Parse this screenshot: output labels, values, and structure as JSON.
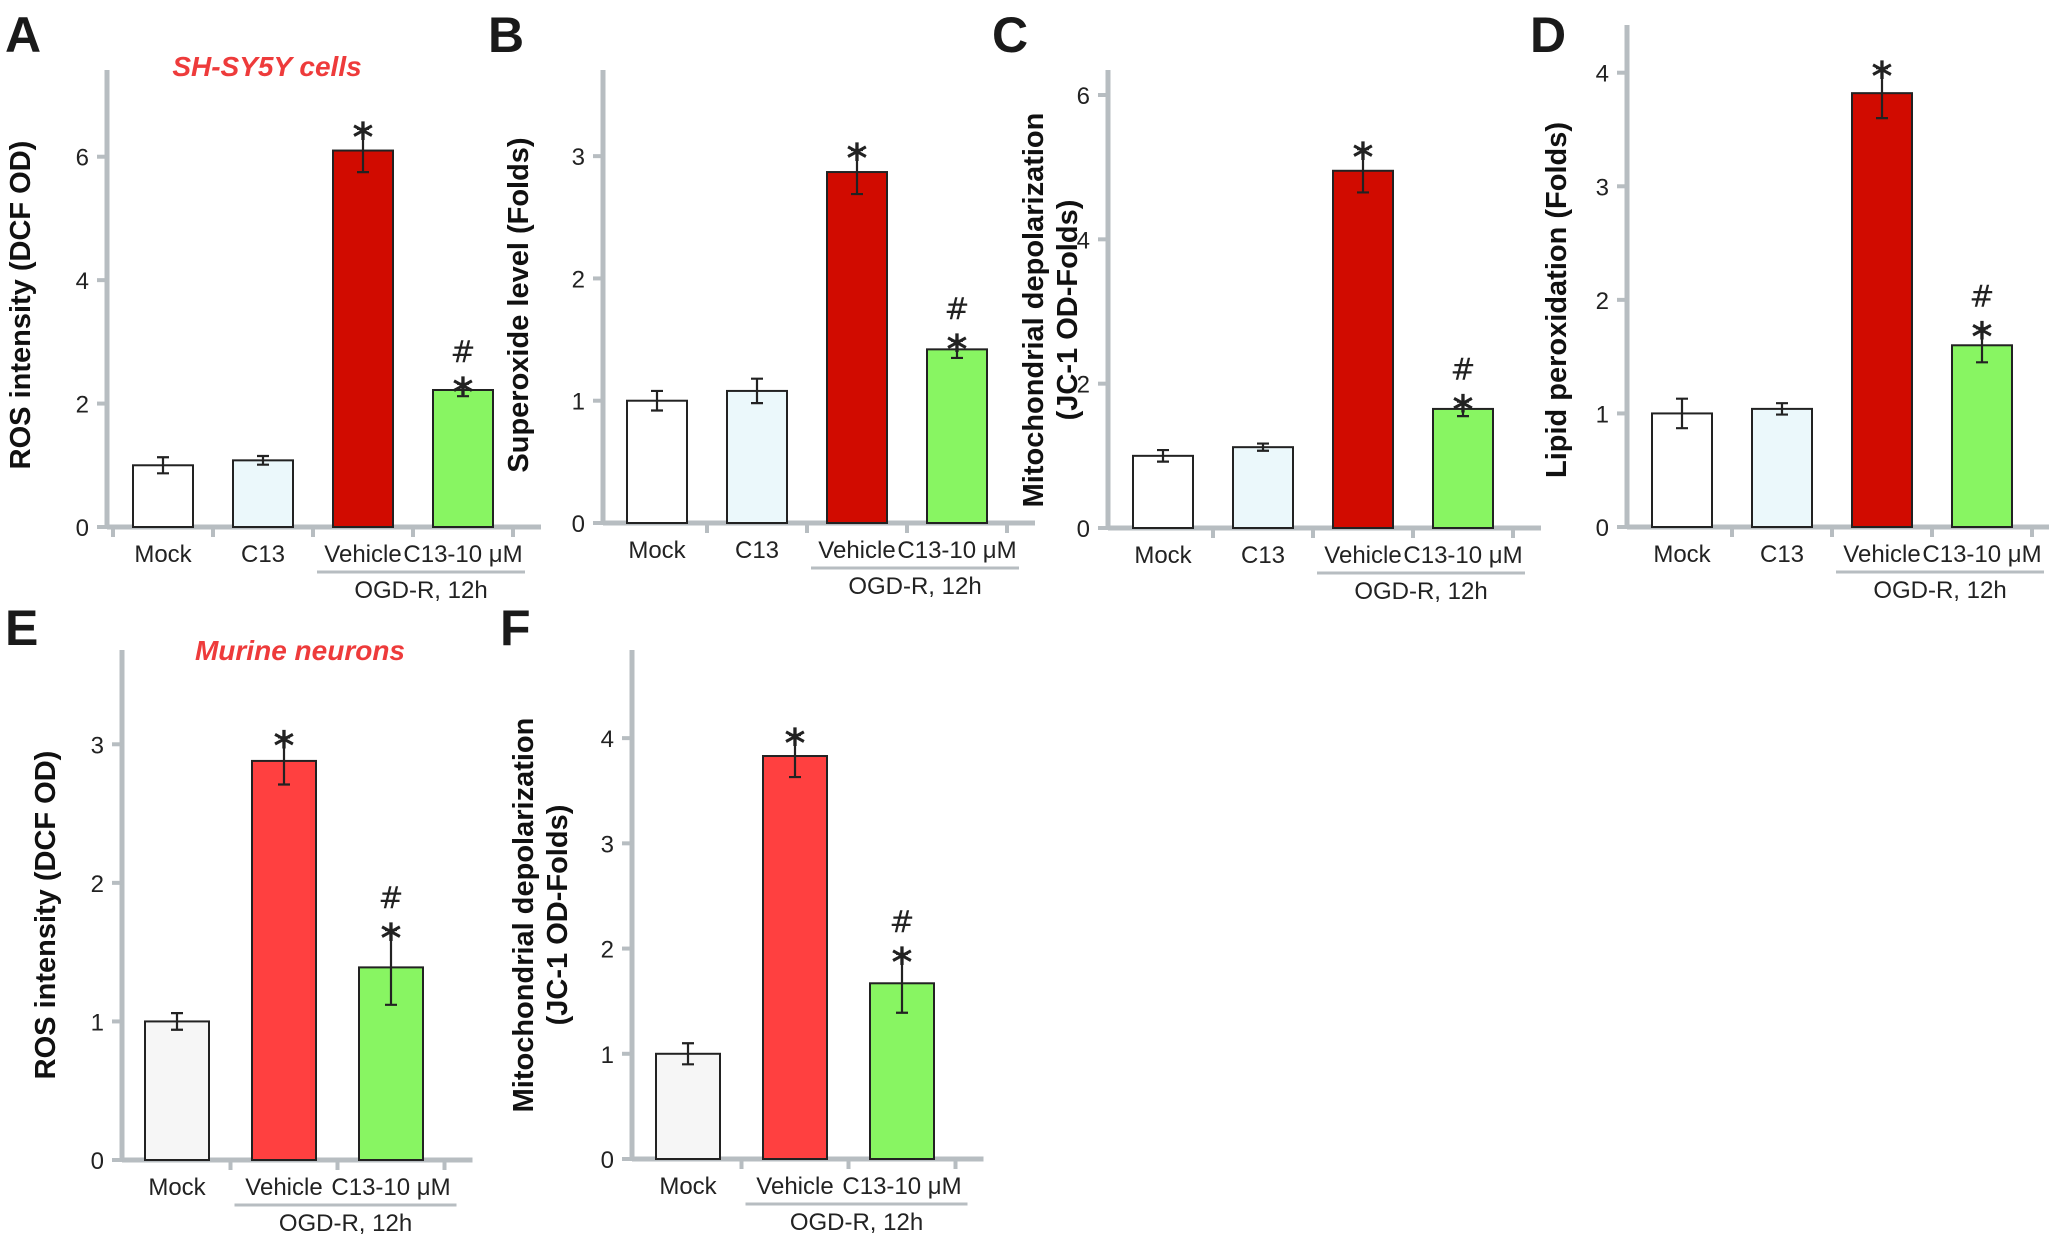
{
  "chart_data": [
    {
      "panel": "A",
      "type": "bar",
      "title": "SH-SY5Y cells",
      "ylabel": "ROS intensity (DCF OD)",
      "categories": [
        "Mock",
        "C13",
        "Vehicle",
        "C13-10 μM"
      ],
      "group_label": "OGD-R, 12h",
      "values": [
        1.0,
        1.08,
        6.1,
        2.22
      ],
      "errors": [
        0.13,
        0.07,
        0.35,
        0.1
      ],
      "colors": [
        "#ffffff",
        "#ebf8fb",
        "#d10b00",
        "#88f562"
      ],
      "markers": [
        "",
        "",
        "*",
        "#*"
      ],
      "ylim": [
        0,
        7
      ],
      "yticks": [
        0,
        2,
        4,
        6
      ]
    },
    {
      "panel": "B",
      "type": "bar",
      "title": "",
      "ylabel": "Superoxide level (Folds)",
      "categories": [
        "Mock",
        "C13",
        "Vehicle",
        "C13-10 μM"
      ],
      "group_label": "OGD-R, 12h",
      "values": [
        1.0,
        1.08,
        2.87,
        1.42
      ],
      "errors": [
        0.08,
        0.1,
        0.18,
        0.07
      ],
      "colors": [
        "#ffffff",
        "#ebf8fb",
        "#d10b00",
        "#88f562"
      ],
      "markers": [
        "",
        "",
        "*",
        "#*"
      ],
      "ylim": [
        0,
        3.5
      ],
      "yticks": [
        0,
        1,
        2,
        3
      ]
    },
    {
      "panel": "C",
      "type": "bar",
      "title": "",
      "ylabel": [
        "Mitochondrial depolarization",
        "(JC-1 OD-Folds)"
      ],
      "categories": [
        "Mock",
        "C13",
        "Vehicle",
        "C13-10 μM"
      ],
      "group_label": "OGD-R, 12h",
      "values": [
        1.0,
        1.12,
        4.95,
        1.65
      ],
      "errors": [
        0.08,
        0.05,
        0.3,
        0.1
      ],
      "colors": [
        "#ffffff",
        "#ebf8fb",
        "#d10b00",
        "#88f562"
      ],
      "markers": [
        "",
        "",
        "*",
        "#*"
      ],
      "ylim": [
        0,
        6
      ],
      "yticks": [
        0,
        2,
        4,
        6
      ]
    },
    {
      "panel": "D",
      "type": "bar",
      "title": "",
      "ylabel": "Lipid peroxidation (Folds)",
      "categories": [
        "Mock",
        "C13",
        "Vehicle",
        "C13-10 μM"
      ],
      "group_label": "OGD-R, 12h",
      "values": [
        1.0,
        1.04,
        3.82,
        1.6
      ],
      "errors": [
        0.13,
        0.05,
        0.22,
        0.15
      ],
      "colors": [
        "#ffffff",
        "#ebf8fb",
        "#d10b00",
        "#88f562"
      ],
      "markers": [
        "",
        "",
        "*",
        "#*"
      ],
      "ylim": [
        0,
        4.2
      ],
      "yticks": [
        0,
        1,
        2,
        3,
        4
      ]
    },
    {
      "panel": "E",
      "type": "bar",
      "title": "Murine neurons",
      "ylabel": "ROS intensity (DCF OD)",
      "categories": [
        "Mock",
        "Vehicle",
        "C13-10 μM"
      ],
      "group_label": "OGD-R, 12h",
      "values": [
        1.0,
        2.88,
        1.39
      ],
      "errors": [
        0.06,
        0.17,
        0.27
      ],
      "colors": [
        "#f6f6f6",
        "#ff4040",
        "#88f562"
      ],
      "markers": [
        "",
        "*",
        "#*"
      ],
      "ylim": [
        0,
        3.5
      ],
      "yticks": [
        0,
        1,
        2,
        3
      ]
    },
    {
      "panel": "F",
      "type": "bar",
      "title": "",
      "ylabel": [
        "Mitochondrial depolarization",
        "(JC-1 OD-Folds)"
      ],
      "categories": [
        "Mock",
        "Vehicle",
        "C13-10 μM"
      ],
      "group_label": "OGD-R, 12h",
      "values": [
        1.0,
        3.83,
        1.67
      ],
      "errors": [
        0.1,
        0.2,
        0.28
      ],
      "colors": [
        "#f6f6f6",
        "#ff4040",
        "#88f562"
      ],
      "markers": [
        "",
        "*",
        "#*"
      ],
      "ylim": [
        0,
        4.6
      ],
      "yticks": [
        0,
        1,
        2,
        3,
        4
      ]
    }
  ]
}
